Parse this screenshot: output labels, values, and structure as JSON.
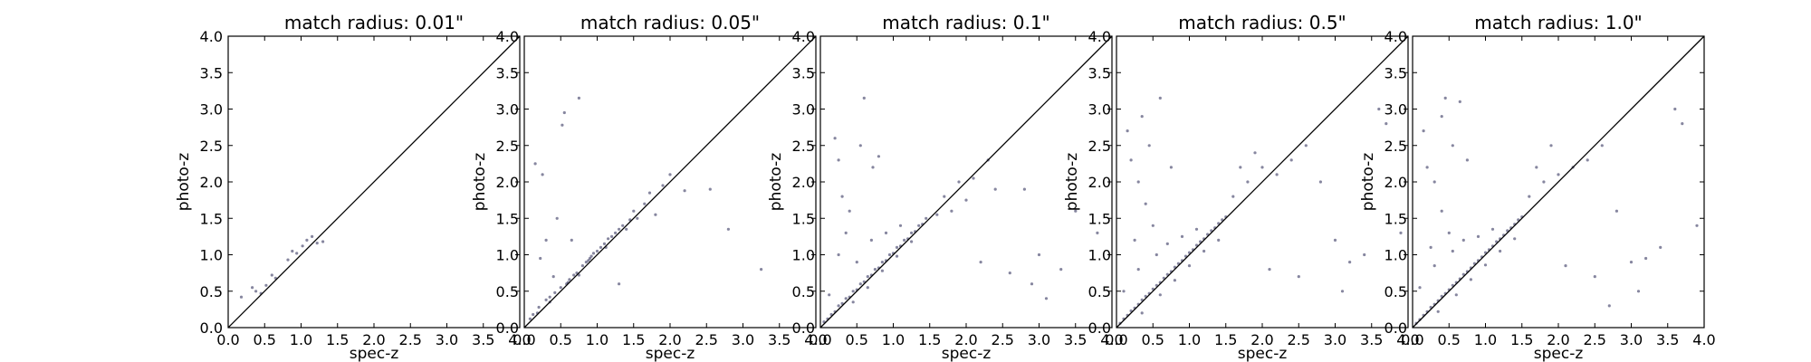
{
  "figure": {
    "panels": [
      {
        "title": "match radius: 0.01\"",
        "xlabel": "spec-z",
        "ylabel": "photo-z"
      },
      {
        "title": "match radius: 0.05\"",
        "xlabel": "spec-z",
        "ylabel": "photo-z"
      },
      {
        "title": "match radius: 0.1\"",
        "xlabel": "spec-z",
        "ylabel": "photo-z"
      },
      {
        "title": "match radius: 0.5\"",
        "xlabel": "spec-z",
        "ylabel": "photo-z"
      },
      {
        "title": "match radius: 1.0\"",
        "xlabel": "spec-z",
        "ylabel": "photo-z"
      }
    ],
    "ticks": [
      "0.0",
      "0.5",
      "1.0",
      "1.5",
      "2.0",
      "2.5",
      "3.0",
      "3.5",
      "4.0"
    ]
  },
  "chart_data": [
    {
      "type": "scatter",
      "title": "match radius: 0.01\"",
      "xlabel": "spec-z",
      "ylabel": "photo-z",
      "xlim": [
        0,
        4
      ],
      "ylim": [
        0,
        4
      ],
      "reference_line": "y = x",
      "marker_color": "#232350",
      "points": [
        [
          0.18,
          0.42
        ],
        [
          0.33,
          0.55
        ],
        [
          0.38,
          0.5
        ],
        [
          0.45,
          0.47
        ],
        [
          0.52,
          0.58
        ],
        [
          0.6,
          0.72
        ],
        [
          0.65,
          0.68
        ],
        [
          0.82,
          0.93
        ],
        [
          0.88,
          1.05
        ],
        [
          0.94,
          1.02
        ],
        [
          1.02,
          1.12
        ],
        [
          1.08,
          1.2
        ],
        [
          1.15,
          1.25
        ],
        [
          1.22,
          1.16
        ],
        [
          1.3,
          1.18
        ]
      ]
    },
    {
      "type": "scatter",
      "title": "match radius: 0.05\"",
      "xlabel": "spec-z",
      "ylabel": "photo-z",
      "xlim": [
        0,
        4
      ],
      "ylim": [
        0,
        4
      ],
      "reference_line": "y = x",
      "marker_color": "#232350",
      "points": [
        [
          0.08,
          0.12
        ],
        [
          0.12,
          0.18
        ],
        [
          0.15,
          2.25
        ],
        [
          0.2,
          0.28
        ],
        [
          0.25,
          2.1
        ],
        [
          0.3,
          0.38
        ],
        [
          0.35,
          0.42
        ],
        [
          0.42,
          0.48
        ],
        [
          0.5,
          0.55
        ],
        [
          0.52,
          2.78
        ],
        [
          0.55,
          2.95
        ],
        [
          0.58,
          0.6
        ],
        [
          0.62,
          0.66
        ],
        [
          0.68,
          0.72
        ],
        [
          0.72,
          0.75
        ],
        [
          0.75,
          3.15
        ],
        [
          0.8,
          0.85
        ],
        [
          0.85,
          0.9
        ],
        [
          0.88,
          0.92
        ],
        [
          0.92,
          0.98
        ],
        [
          0.95,
          1.02
        ],
        [
          1.0,
          1.05
        ],
        [
          1.05,
          1.1
        ],
        [
          1.1,
          1.15
        ],
        [
          1.15,
          1.22
        ],
        [
          1.2,
          1.25
        ],
        [
          1.25,
          1.3
        ],
        [
          1.3,
          1.35
        ],
        [
          1.35,
          1.4
        ],
        [
          1.4,
          1.35
        ],
        [
          1.5,
          1.6
        ],
        [
          1.55,
          1.5
        ],
        [
          1.65,
          1.7
        ],
        [
          1.72,
          1.85
        ],
        [
          1.8,
          1.55
        ],
        [
          1.9,
          1.95
        ],
        [
          2.0,
          2.1
        ],
        [
          2.2,
          1.88
        ],
        [
          2.55,
          1.9
        ],
        [
          2.8,
          1.35
        ],
        [
          3.25,
          0.8
        ],
        [
          0.3,
          1.2
        ],
        [
          0.45,
          1.5
        ],
        [
          0.22,
          0.95
        ],
        [
          0.4,
          0.7
        ],
        [
          0.65,
          1.2
        ],
        [
          1.3,
          0.6
        ],
        [
          0.18,
          0.2
        ],
        [
          0.35,
          0.35
        ],
        [
          0.6,
          0.62
        ],
        [
          0.9,
          0.95
        ],
        [
          1.12,
          1.1
        ],
        [
          0.75,
          0.72
        ],
        [
          1.45,
          1.48
        ]
      ]
    },
    {
      "type": "scatter",
      "title": "match radius: 0.1\"",
      "xlabel": "spec-z",
      "ylabel": "photo-z",
      "xlim": [
        0,
        4
      ],
      "ylim": [
        0,
        4
      ],
      "reference_line": "y = x",
      "marker_color": "#232350",
      "points": [
        [
          0.05,
          0.08
        ],
        [
          0.1,
          0.12
        ],
        [
          0.15,
          0.18
        ],
        [
          0.2,
          0.22
        ],
        [
          0.25,
          0.3
        ],
        [
          0.3,
          0.33
        ],
        [
          0.35,
          0.4
        ],
        [
          0.4,
          0.42
        ],
        [
          0.45,
          0.5
        ],
        [
          0.5,
          0.52
        ],
        [
          0.55,
          0.6
        ],
        [
          0.6,
          0.63
        ],
        [
          0.65,
          0.7
        ],
        [
          0.7,
          0.72
        ],
        [
          0.75,
          0.8
        ],
        [
          0.8,
          0.82
        ],
        [
          0.85,
          0.9
        ],
        [
          0.9,
          0.92
        ],
        [
          0.95,
          1.0
        ],
        [
          1.0,
          1.02
        ],
        [
          1.05,
          1.1
        ],
        [
          1.1,
          1.12
        ],
        [
          1.15,
          1.2
        ],
        [
          1.2,
          1.22
        ],
        [
          1.25,
          1.3
        ],
        [
          1.3,
          1.32
        ],
        [
          1.35,
          1.4
        ],
        [
          1.4,
          1.42
        ],
        [
          1.45,
          1.5
        ],
        [
          0.2,
          2.6
        ],
        [
          0.25,
          2.3
        ],
        [
          0.3,
          1.8
        ],
        [
          0.4,
          1.6
        ],
        [
          0.55,
          2.5
        ],
        [
          0.6,
          3.15
        ],
        [
          0.72,
          2.2
        ],
        [
          0.8,
          2.35
        ],
        [
          0.35,
          1.3
        ],
        [
          0.25,
          1.0
        ],
        [
          1.7,
          1.8
        ],
        [
          1.9,
          2.0
        ],
        [
          2.1,
          2.05
        ],
        [
          2.3,
          2.3
        ],
        [
          2.4,
          1.9
        ],
        [
          2.8,
          1.9
        ],
        [
          3.1,
          0.4
        ],
        [
          3.3,
          0.8
        ],
        [
          3.0,
          1.0
        ],
        [
          3.5,
          1.6
        ],
        [
          3.8,
          1.3
        ],
        [
          1.6,
          1.55
        ],
        [
          1.8,
          1.6
        ],
        [
          2.0,
          1.75
        ],
        [
          0.12,
          0.45
        ],
        [
          0.5,
          0.9
        ],
        [
          0.7,
          1.2
        ],
        [
          0.9,
          1.3
        ],
        [
          1.1,
          1.4
        ],
        [
          0.45,
          0.35
        ],
        [
          0.65,
          0.55
        ],
        [
          0.85,
          0.78
        ],
        [
          1.05,
          0.98
        ],
        [
          1.25,
          1.18
        ],
        [
          2.2,
          0.9
        ],
        [
          2.6,
          0.75
        ],
        [
          2.9,
          0.6
        ]
      ]
    },
    {
      "type": "scatter",
      "title": "match radius: 0.5\"",
      "xlabel": "spec-z",
      "ylabel": "photo-z",
      "xlim": [
        0,
        4
      ],
      "ylim": [
        0,
        4
      ],
      "reference_line": "y = x",
      "marker_color": "#232350",
      "points": [
        [
          0.05,
          0.06
        ],
        [
          0.1,
          0.12
        ],
        [
          0.15,
          0.17
        ],
        [
          0.2,
          0.23
        ],
        [
          0.25,
          0.27
        ],
        [
          0.3,
          0.32
        ],
        [
          0.35,
          0.38
        ],
        [
          0.4,
          0.43
        ],
        [
          0.45,
          0.47
        ],
        [
          0.5,
          0.53
        ],
        [
          0.55,
          0.58
        ],
        [
          0.6,
          0.62
        ],
        [
          0.65,
          0.68
        ],
        [
          0.7,
          0.73
        ],
        [
          0.75,
          0.77
        ],
        [
          0.8,
          0.83
        ],
        [
          0.85,
          0.88
        ],
        [
          0.9,
          0.92
        ],
        [
          0.95,
          0.98
        ],
        [
          1.0,
          1.03
        ],
        [
          1.05,
          1.07
        ],
        [
          1.1,
          1.13
        ],
        [
          1.15,
          1.18
        ],
        [
          1.2,
          1.22
        ],
        [
          1.25,
          1.28
        ],
        [
          1.3,
          1.33
        ],
        [
          1.35,
          1.37
        ],
        [
          1.4,
          1.43
        ],
        [
          1.45,
          1.48
        ],
        [
          1.5,
          1.52
        ],
        [
          0.15,
          2.7
        ],
        [
          0.2,
          2.3
        ],
        [
          0.3,
          2.0
        ],
        [
          0.35,
          2.9
        ],
        [
          0.45,
          2.5
        ],
        [
          0.6,
          3.15
        ],
        [
          0.75,
          2.2
        ],
        [
          0.4,
          1.7
        ],
        [
          0.5,
          1.4
        ],
        [
          0.25,
          1.2
        ],
        [
          1.6,
          1.8
        ],
        [
          1.8,
          2.0
        ],
        [
          2.0,
          2.2
        ],
        [
          2.2,
          2.1
        ],
        [
          2.4,
          2.3
        ],
        [
          2.6,
          2.5
        ],
        [
          2.8,
          2.0
        ],
        [
          3.0,
          1.2
        ],
        [
          3.1,
          0.5
        ],
        [
          3.2,
          0.9
        ],
        [
          3.4,
          1.0
        ],
        [
          3.6,
          3.0
        ],
        [
          3.7,
          2.8
        ],
        [
          3.9,
          1.3
        ],
        [
          0.1,
          0.5
        ],
        [
          0.3,
          0.8
        ],
        [
          0.55,
          1.0
        ],
        [
          0.7,
          1.15
        ],
        [
          0.9,
          1.25
        ],
        [
          1.1,
          1.35
        ],
        [
          0.35,
          0.2
        ],
        [
          0.6,
          0.45
        ],
        [
          0.8,
          0.65
        ],
        [
          1.0,
          0.85
        ],
        [
          1.2,
          1.05
        ],
        [
          1.4,
          1.2
        ],
        [
          2.1,
          0.8
        ],
        [
          2.5,
          0.7
        ],
        [
          1.7,
          2.2
        ],
        [
          1.9,
          2.4
        ]
      ]
    },
    {
      "type": "scatter",
      "title": "match radius: 1.0\"",
      "xlabel": "spec-z",
      "ylabel": "photo-z",
      "xlim": [
        0,
        4
      ],
      "ylim": [
        0,
        4
      ],
      "reference_line": "y = x",
      "marker_color": "#232350",
      "points": [
        [
          0.05,
          0.06
        ],
        [
          0.1,
          0.11
        ],
        [
          0.15,
          0.17
        ],
        [
          0.2,
          0.22
        ],
        [
          0.25,
          0.28
        ],
        [
          0.3,
          0.32
        ],
        [
          0.35,
          0.37
        ],
        [
          0.4,
          0.43
        ],
        [
          0.45,
          0.47
        ],
        [
          0.5,
          0.52
        ],
        [
          0.55,
          0.58
        ],
        [
          0.6,
          0.62
        ],
        [
          0.65,
          0.67
        ],
        [
          0.7,
          0.73
        ],
        [
          0.75,
          0.77
        ],
        [
          0.8,
          0.82
        ],
        [
          0.85,
          0.88
        ],
        [
          0.9,
          0.92
        ],
        [
          0.95,
          0.97
        ],
        [
          1.0,
          1.03
        ],
        [
          1.05,
          1.07
        ],
        [
          1.1,
          1.12
        ],
        [
          1.15,
          1.18
        ],
        [
          1.2,
          1.22
        ],
        [
          1.25,
          1.27
        ],
        [
          1.3,
          1.33
        ],
        [
          1.35,
          1.37
        ],
        [
          1.4,
          1.42
        ],
        [
          1.45,
          1.48
        ],
        [
          1.5,
          1.52
        ],
        [
          0.15,
          2.7
        ],
        [
          0.2,
          2.2
        ],
        [
          0.3,
          2.0
        ],
        [
          0.4,
          2.9
        ],
        [
          0.45,
          3.15
        ],
        [
          0.55,
          2.5
        ],
        [
          0.65,
          3.1
        ],
        [
          0.75,
          2.3
        ],
        [
          0.4,
          1.6
        ],
        [
          0.5,
          1.3
        ],
        [
          0.25,
          1.1
        ],
        [
          1.6,
          1.8
        ],
        [
          1.8,
          2.0
        ],
        [
          2.0,
          2.1
        ],
        [
          2.2,
          2.2
        ],
        [
          2.4,
          2.3
        ],
        [
          2.6,
          2.5
        ],
        [
          2.8,
          1.6
        ],
        [
          3.0,
          0.9
        ],
        [
          3.1,
          0.5
        ],
        [
          3.2,
          0.95
        ],
        [
          3.4,
          1.1
        ],
        [
          3.6,
          3.0
        ],
        [
          3.7,
          2.8
        ],
        [
          3.9,
          1.4
        ],
        [
          0.1,
          0.55
        ],
        [
          0.3,
          0.85
        ],
        [
          0.55,
          1.05
        ],
        [
          0.7,
          1.2
        ],
        [
          0.9,
          1.25
        ],
        [
          1.1,
          1.35
        ],
        [
          0.35,
          0.22
        ],
        [
          0.6,
          0.45
        ],
        [
          0.8,
          0.66
        ],
        [
          1.0,
          0.86
        ],
        [
          1.2,
          1.05
        ],
        [
          1.4,
          1.22
        ],
        [
          2.1,
          0.85
        ],
        [
          2.5,
          0.7
        ],
        [
          2.7,
          0.3
        ],
        [
          1.7,
          2.2
        ],
        [
          1.9,
          2.5
        ]
      ]
    }
  ]
}
